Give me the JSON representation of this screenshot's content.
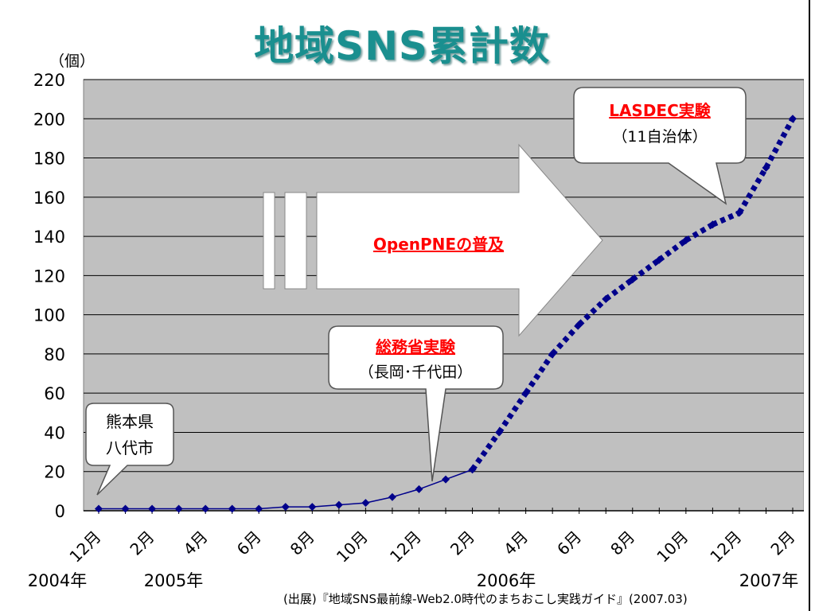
{
  "title": "地域SNS累計数",
  "unit_label": "（個）",
  "source": "(出展)『地域SNS最前線-Web2.0時代のまちおこし実践ガイド』(2007.03)",
  "colors": {
    "title": "#1a8f8f",
    "series": "#00008b",
    "plot_bg": "#c0c0c0",
    "callout_title": "#ff0000"
  },
  "chart_data": {
    "type": "line",
    "ylim": [
      0,
      220
    ],
    "yticks": [
      0,
      20,
      40,
      60,
      80,
      100,
      120,
      140,
      160,
      180,
      200,
      220
    ],
    "x_tick_labels": [
      "12月",
      "2月",
      "4月",
      "6月",
      "8月",
      "10月",
      "12月",
      "2月",
      "4月",
      "6月",
      "8月",
      "10月",
      "12月",
      "2月"
    ],
    "year_labels": [
      "2004年",
      "2005年",
      "2006年",
      "2007年"
    ],
    "grid": true,
    "series": [
      {
        "values": [
          1,
          1,
          1,
          1,
          1,
          1,
          1,
          2,
          2,
          3,
          4,
          7,
          11,
          16,
          21,
          40,
          60,
          80,
          95,
          108,
          118,
          128,
          138,
          146,
          152,
          175,
          200
        ]
      }
    ]
  },
  "callouts": {
    "kumamoto": {
      "line1": "熊本県",
      "line2": "八代市"
    },
    "soumu": {
      "title": "総務省実験",
      "sub": "（長岡･千代田）"
    },
    "lasdec": {
      "title": "LASDEC実験",
      "sub": "（11自治体）"
    },
    "openpne": {
      "label": "OpenPNEの普及"
    }
  }
}
